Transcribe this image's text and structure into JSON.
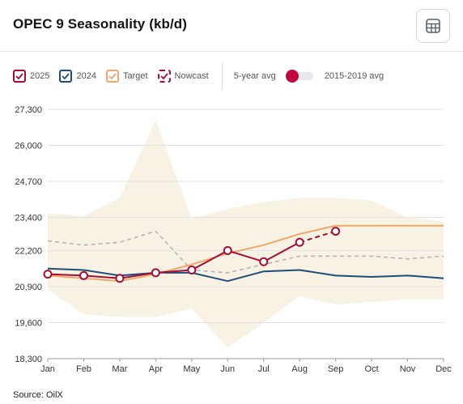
{
  "header": {
    "title": "OPEC 9 Seasonality (kb/d)",
    "table_icon": "table-grid-icon"
  },
  "legend": {
    "items": [
      {
        "label": "2025",
        "color": "#a50d35",
        "style": "solid"
      },
      {
        "label": "2024",
        "color": "#1f4e79",
        "style": "solid"
      },
      {
        "label": "Target",
        "color": "#f0a76a",
        "style": "solid"
      },
      {
        "label": "Nowcast",
        "color": "#a50d35",
        "style": "dashed"
      }
    ],
    "toggle_left_label": "5-year avg",
    "toggle_right_label": "2015-2019 avg",
    "toggle_color": "#c0063e"
  },
  "chart_data": {
    "type": "line",
    "categories": [
      "Jan",
      "Feb",
      "Mar",
      "Apr",
      "May",
      "Jun",
      "Jul",
      "Aug",
      "Sep",
      "Oct",
      "Nov",
      "Dec"
    ],
    "ylim": [
      18300,
      27300
    ],
    "yticks": [
      "18,300",
      "19,600",
      "20,900",
      "22,200",
      "23,400",
      "24,700",
      "26,000",
      "27,300"
    ],
    "ytick_values": [
      18300,
      19600,
      20900,
      22200,
      23400,
      24700,
      26000,
      27300
    ],
    "grid": true,
    "range_band": {
      "color": "#f7f2e3",
      "upper": [
        23550,
        23450,
        24100,
        26900,
        23350,
        23700,
        23950,
        24100,
        24100,
        24000,
        23400,
        23250
      ],
      "lower": [
        20800,
        19900,
        19800,
        19800,
        20100,
        18700,
        19600,
        20550,
        20250,
        20350,
        20450,
        20450
      ]
    },
    "series": [
      {
        "name": "2025",
        "color": "#a50d35",
        "markers": true,
        "values": [
          21350,
          21300,
          21200,
          21400,
          21500,
          22200,
          21800,
          22500,
          null,
          null,
          null,
          null
        ]
      },
      {
        "name": "Nowcast",
        "color": "#a50d35",
        "dashed": true,
        "markers": true,
        "values": [
          null,
          null,
          null,
          null,
          null,
          null,
          null,
          22500,
          22900,
          null,
          null,
          null
        ]
      },
      {
        "name": "2024",
        "color": "#1f4e79",
        "values": [
          21550,
          21500,
          21300,
          21400,
          21400,
          21100,
          21450,
          21500,
          21300,
          21250,
          21300,
          21200
        ]
      },
      {
        "name": "Target",
        "color": "#f0a76a",
        "values": [
          21300,
          21200,
          21100,
          21350,
          21700,
          22100,
          22400,
          22800,
          23100,
          23100,
          23100,
          23100
        ]
      },
      {
        "color": "#b0b0b8",
        "dashed": true,
        "values": [
          22550,
          22400,
          22500,
          22900,
          21500,
          21400,
          21700,
          22000,
          22000,
          22000,
          21900,
          22000
        ]
      }
    ]
  },
  "source": "Source: OilX"
}
